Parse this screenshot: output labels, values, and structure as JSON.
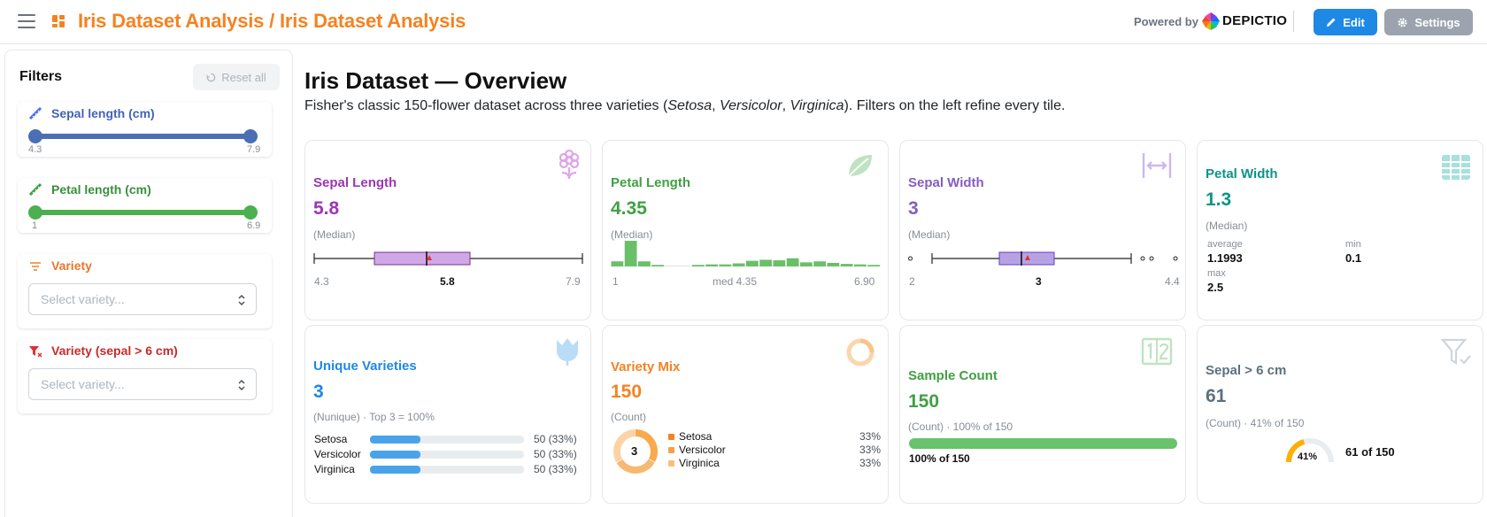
{
  "header": {
    "title": "Iris Dataset Analysis / Iris Dataset Analysis",
    "powered_by": "Powered by",
    "brand": "DEPICTIO",
    "edit_label": "Edit",
    "settings_label": "Settings"
  },
  "sidebar": {
    "title": "Filters",
    "reset_label": "Reset all",
    "sepal_length": {
      "label": "Sepal length (cm)",
      "min": "4.3",
      "max": "7.9"
    },
    "petal_length": {
      "label": "Petal length (cm)",
      "min": "1",
      "max": "6.9"
    },
    "variety": {
      "label": "Variety",
      "placeholder": "Select variety..."
    },
    "variety_sepal": {
      "label": "Variety (sepal > 6 cm)",
      "placeholder": "Select variety..."
    }
  },
  "main": {
    "title": "Iris Dataset — Overview",
    "desc_pre": "Fisher's classic 150-flower dataset across three varieties (",
    "v1": "Setosa",
    "v2": "Versicolor",
    "v3": "Virginica",
    "desc_post": "). Filters on the left refine every tile.",
    "comma": ", "
  },
  "cards": {
    "sepal_length": {
      "title": "Sepal Length",
      "value": "5.8",
      "sub": "(Median)",
      "min": "4.3",
      "median": "5.8",
      "max": "7.9",
      "color": "#9c36b5"
    },
    "petal_length": {
      "title": "Petal Length",
      "value": "4.35",
      "sub": "(Median)",
      "min": "1",
      "median": "med 4.35",
      "max": "6.90",
      "color": "#40a043",
      "histogram": [
        1,
        5,
        1,
        0.3,
        0,
        0,
        0.3,
        0.4,
        0.4,
        0.6,
        1.1,
        1.3,
        1.2,
        1.6,
        0.8,
        1,
        0.7,
        0.5,
        0.4,
        0.3
      ]
    },
    "sepal_width": {
      "title": "Sepal Width",
      "value": "3",
      "sub": "(Median)",
      "min": "2",
      "median": "3",
      "max": "4.4",
      "color": "#845ec2"
    },
    "petal_width": {
      "title": "Petal Width",
      "value": "1.3",
      "sub": "(Median)",
      "average_label": "average",
      "average": "1.1993",
      "min_label": "min",
      "min": "0.1",
      "max_label": "max",
      "max": "2.5",
      "color": "#0d9488"
    },
    "unique_varieties": {
      "title": "Unique Varieties",
      "value": "3",
      "sub": "(Nunique) · Top 3 = 100%",
      "color": "#1e88e5",
      "rows": [
        {
          "name": "Setosa",
          "value": "50 (33%)",
          "share": 0.33
        },
        {
          "name": "Versicolor",
          "value": "50 (33%)",
          "share": 0.33
        },
        {
          "name": "Virginica",
          "value": "50 (33%)",
          "share": 0.33
        }
      ]
    },
    "variety_mix": {
      "title": "Variety Mix",
      "value": "150",
      "sub": "(Count)",
      "center": "3",
      "color": "#f58220",
      "rows": [
        {
          "name": "Setosa",
          "value": "33%"
        },
        {
          "name": "Versicolor",
          "value": "33%"
        },
        {
          "name": "Virginica",
          "value": "33%"
        }
      ]
    },
    "sample_count": {
      "title": "Sample Count",
      "value": "150",
      "sub": "(Count) · 100% of 150",
      "bar_label": "100% of 150",
      "fill": 1.0,
      "color": "#40a043"
    },
    "sepal_gt6": {
      "title": "Sepal > 6 cm",
      "value": "61",
      "sub": "(Count) · 41% of 150",
      "gauge_pct": "41%",
      "gauge_value": 0.41,
      "gauge_label": "61 of 150",
      "color": "#5c7080"
    }
  }
}
